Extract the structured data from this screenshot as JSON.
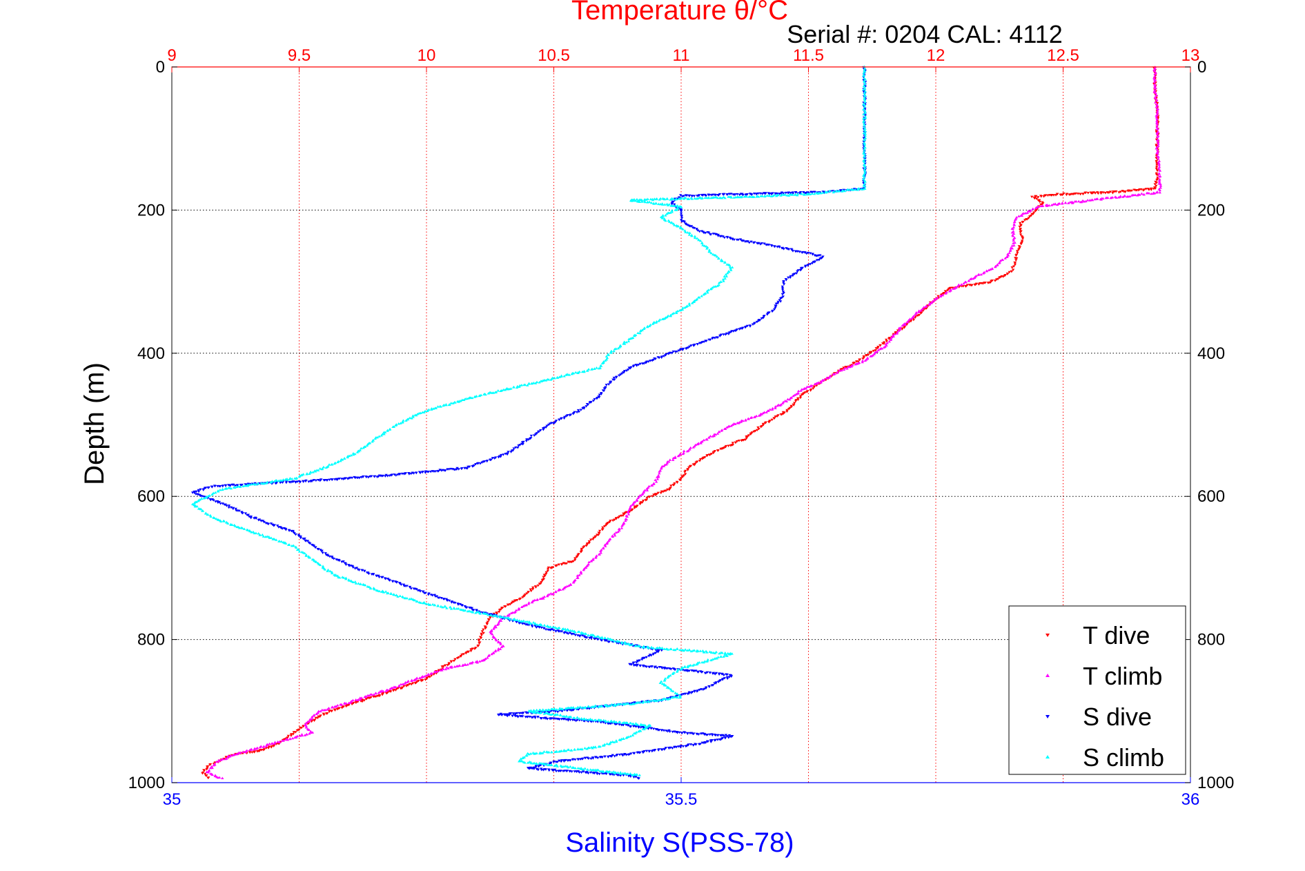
{
  "chart_data": {
    "type": "scatter",
    "title": "Temperature θ/°C",
    "subtitle": "Serial #: 0204  CAL: 4112",
    "ylabel": "Depth (m)",
    "xlabel_bottom": "Salinity S(PSS-78)",
    "ylim": [
      0,
      1000
    ],
    "y_reversed": true,
    "y_ticks": [
      "0",
      "200",
      "400",
      "600",
      "800",
      "1000"
    ],
    "top_axis": {
      "name": "temperature",
      "range": [
        9,
        13
      ],
      "ticks": [
        "9",
        "9.5",
        "10",
        "10.5",
        "11",
        "11.5",
        "12",
        "12.5",
        "13"
      ],
      "color": "#ff0000"
    },
    "bottom_axis": {
      "name": "salinity",
      "range": [
        35,
        36
      ],
      "ticks": [
        "35",
        "35.5",
        "36"
      ],
      "color": "#0000ff"
    },
    "grid": true,
    "legend_position": "bottom-right",
    "series": [
      {
        "name": "T dive",
        "axis": "temperature",
        "color": "#ff0000",
        "marker": "triangle-down",
        "points": [
          [
            12.86,
            0
          ],
          [
            12.86,
            30
          ],
          [
            12.87,
            60
          ],
          [
            12.87,
            90
          ],
          [
            12.87,
            120
          ],
          [
            12.87,
            150
          ],
          [
            12.86,
            170
          ],
          [
            12.7,
            175
          ],
          [
            12.48,
            178
          ],
          [
            12.38,
            182
          ],
          [
            12.42,
            190
          ],
          [
            12.38,
            205
          ],
          [
            12.33,
            220
          ],
          [
            12.34,
            240
          ],
          [
            12.32,
            262
          ],
          [
            12.3,
            285
          ],
          [
            12.22,
            300
          ],
          [
            12.05,
            310
          ],
          [
            11.98,
            330
          ],
          [
            11.92,
            350
          ],
          [
            11.85,
            370
          ],
          [
            11.78,
            390
          ],
          [
            11.7,
            410
          ],
          [
            11.62,
            425
          ],
          [
            11.55,
            440
          ],
          [
            11.47,
            460
          ],
          [
            11.42,
            480
          ],
          [
            11.32,
            500
          ],
          [
            11.25,
            520
          ],
          [
            11.18,
            530
          ],
          [
            11.12,
            540
          ],
          [
            11.07,
            550
          ],
          [
            11.03,
            560
          ],
          [
            11.0,
            575
          ],
          [
            10.95,
            590
          ],
          [
            10.88,
            600
          ],
          [
            10.8,
            620
          ],
          [
            10.72,
            635
          ],
          [
            10.68,
            650
          ],
          [
            10.62,
            670
          ],
          [
            10.58,
            690
          ],
          [
            10.48,
            700
          ],
          [
            10.45,
            720
          ],
          [
            10.38,
            740
          ],
          [
            10.3,
            755
          ],
          [
            10.25,
            770
          ],
          [
            10.22,
            790
          ],
          [
            10.2,
            810
          ],
          [
            10.1,
            830
          ],
          [
            10.0,
            855
          ],
          [
            9.88,
            870
          ],
          [
            9.75,
            885
          ],
          [
            9.62,
            900
          ],
          [
            9.52,
            920
          ],
          [
            9.48,
            930
          ],
          [
            9.42,
            945
          ],
          [
            9.35,
            955
          ],
          [
            9.25,
            960
          ],
          [
            9.15,
            975
          ],
          [
            9.12,
            985
          ],
          [
            9.15,
            995
          ]
        ]
      },
      {
        "name": "T climb",
        "axis": "temperature",
        "color": "#ff00ff",
        "marker": "triangle-up",
        "points": [
          [
            12.86,
            0
          ],
          [
            12.86,
            30
          ],
          [
            12.87,
            60
          ],
          [
            12.87,
            90
          ],
          [
            12.87,
            120
          ],
          [
            12.88,
            150
          ],
          [
            12.88,
            175
          ],
          [
            12.4,
            195
          ],
          [
            12.32,
            210
          ],
          [
            12.3,
            225
          ],
          [
            12.31,
            245
          ],
          [
            12.28,
            265
          ],
          [
            12.23,
            280
          ],
          [
            12.12,
            300
          ],
          [
            12.02,
            320
          ],
          [
            11.92,
            345
          ],
          [
            11.86,
            365
          ],
          [
            11.8,
            390
          ],
          [
            11.72,
            410
          ],
          [
            11.62,
            425
          ],
          [
            11.55,
            440
          ],
          [
            11.48,
            450
          ],
          [
            11.4,
            470
          ],
          [
            11.32,
            485
          ],
          [
            11.2,
            500
          ],
          [
            11.1,
            520
          ],
          [
            11.05,
            530
          ],
          [
            10.98,
            545
          ],
          [
            10.92,
            560
          ],
          [
            10.9,
            580
          ],
          [
            10.85,
            595
          ],
          [
            10.8,
            615
          ],
          [
            10.78,
            635
          ],
          [
            10.75,
            650
          ],
          [
            10.72,
            660
          ],
          [
            10.68,
            680
          ],
          [
            10.62,
            700
          ],
          [
            10.58,
            720
          ],
          [
            10.5,
            735
          ],
          [
            10.4,
            750
          ],
          [
            10.3,
            770
          ],
          [
            10.25,
            790
          ],
          [
            10.3,
            810
          ],
          [
            10.22,
            830
          ],
          [
            10.08,
            840
          ],
          [
            9.96,
            855
          ],
          [
            9.85,
            870
          ],
          [
            9.72,
            885
          ],
          [
            9.58,
            900
          ],
          [
            9.52,
            920
          ],
          [
            9.55,
            930
          ],
          [
            9.45,
            940
          ],
          [
            9.35,
            950
          ],
          [
            9.25,
            960
          ],
          [
            9.18,
            970
          ],
          [
            9.14,
            985
          ],
          [
            9.2,
            995
          ]
        ]
      },
      {
        "name": "S dive",
        "axis": "salinity",
        "color": "#0000ff",
        "marker": "triangle-down",
        "points": [
          [
            35.68,
            0
          ],
          [
            35.68,
            30
          ],
          [
            35.68,
            60
          ],
          [
            35.68,
            90
          ],
          [
            35.68,
            120
          ],
          [
            35.68,
            150
          ],
          [
            35.68,
            170
          ],
          [
            35.64,
            175
          ],
          [
            35.5,
            180
          ],
          [
            35.49,
            190
          ],
          [
            35.5,
            200
          ],
          [
            35.5,
            215
          ],
          [
            35.52,
            230
          ],
          [
            35.55,
            240
          ],
          [
            35.59,
            250
          ],
          [
            35.64,
            265
          ],
          [
            35.62,
            280
          ],
          [
            35.6,
            300
          ],
          [
            35.6,
            320
          ],
          [
            35.59,
            340
          ],
          [
            35.57,
            360
          ],
          [
            35.53,
            380
          ],
          [
            35.49,
            400
          ],
          [
            35.45,
            420
          ],
          [
            35.43,
            440
          ],
          [
            35.42,
            460
          ],
          [
            35.4,
            480
          ],
          [
            35.37,
            500
          ],
          [
            35.35,
            520
          ],
          [
            35.33,
            540
          ],
          [
            35.29,
            560
          ],
          [
            35.22,
            570
          ],
          [
            35.14,
            578
          ],
          [
            35.04,
            586
          ],
          [
            35.02,
            595
          ],
          [
            35.05,
            610
          ],
          [
            35.08,
            630
          ],
          [
            35.12,
            650
          ],
          [
            35.15,
            680
          ],
          [
            35.18,
            700
          ],
          [
            35.22,
            720
          ],
          [
            35.26,
            740
          ],
          [
            35.3,
            760
          ],
          [
            35.35,
            780
          ],
          [
            35.42,
            800
          ],
          [
            35.48,
            815
          ],
          [
            35.45,
            835
          ],
          [
            35.55,
            850
          ],
          [
            35.52,
            870
          ],
          [
            35.48,
            885
          ],
          [
            35.38,
            900
          ],
          [
            35.32,
            905
          ],
          [
            35.42,
            915
          ],
          [
            35.5,
            930
          ],
          [
            35.55,
            935
          ],
          [
            35.52,
            945
          ],
          [
            35.45,
            960
          ],
          [
            35.38,
            970
          ],
          [
            35.35,
            980
          ],
          [
            35.45,
            990
          ],
          [
            35.46,
            995
          ]
        ]
      },
      {
        "name": "S climb",
        "axis": "salinity",
        "color": "#00ffff",
        "marker": "triangle-up",
        "points": [
          [
            35.68,
            0
          ],
          [
            35.68,
            30
          ],
          [
            35.68,
            60
          ],
          [
            35.68,
            90
          ],
          [
            35.68,
            120
          ],
          [
            35.68,
            150
          ],
          [
            35.68,
            170
          ],
          [
            35.62,
            178
          ],
          [
            35.55,
            182
          ],
          [
            35.45,
            186
          ],
          [
            35.5,
            195
          ],
          [
            35.48,
            210
          ],
          [
            35.5,
            225
          ],
          [
            35.52,
            245
          ],
          [
            35.53,
            260
          ],
          [
            35.55,
            280
          ],
          [
            35.54,
            300
          ],
          [
            35.52,
            320
          ],
          [
            35.5,
            340
          ],
          [
            35.47,
            360
          ],
          [
            35.45,
            380
          ],
          [
            35.43,
            400
          ],
          [
            35.42,
            420
          ],
          [
            35.36,
            440
          ],
          [
            35.3,
            460
          ],
          [
            35.25,
            480
          ],
          [
            35.22,
            500
          ],
          [
            35.2,
            520
          ],
          [
            35.18,
            540
          ],
          [
            35.15,
            560
          ],
          [
            35.12,
            575
          ],
          [
            35.05,
            590
          ],
          [
            35.02,
            610
          ],
          [
            35.04,
            630
          ],
          [
            35.08,
            650
          ],
          [
            35.12,
            670
          ],
          [
            35.14,
            690
          ],
          [
            35.16,
            710
          ],
          [
            35.2,
            730
          ],
          [
            35.25,
            750
          ],
          [
            35.33,
            770
          ],
          [
            35.4,
            790
          ],
          [
            35.46,
            810
          ],
          [
            35.55,
            820
          ],
          [
            35.5,
            840
          ],
          [
            35.48,
            860
          ],
          [
            35.5,
            880
          ],
          [
            35.45,
            890
          ],
          [
            35.35,
            900
          ],
          [
            35.4,
            910
          ],
          [
            35.47,
            920
          ],
          [
            35.45,
            935
          ],
          [
            35.42,
            950
          ],
          [
            35.35,
            960
          ],
          [
            35.34,
            970
          ],
          [
            35.4,
            980
          ],
          [
            35.46,
            990
          ]
        ]
      }
    ]
  }
}
